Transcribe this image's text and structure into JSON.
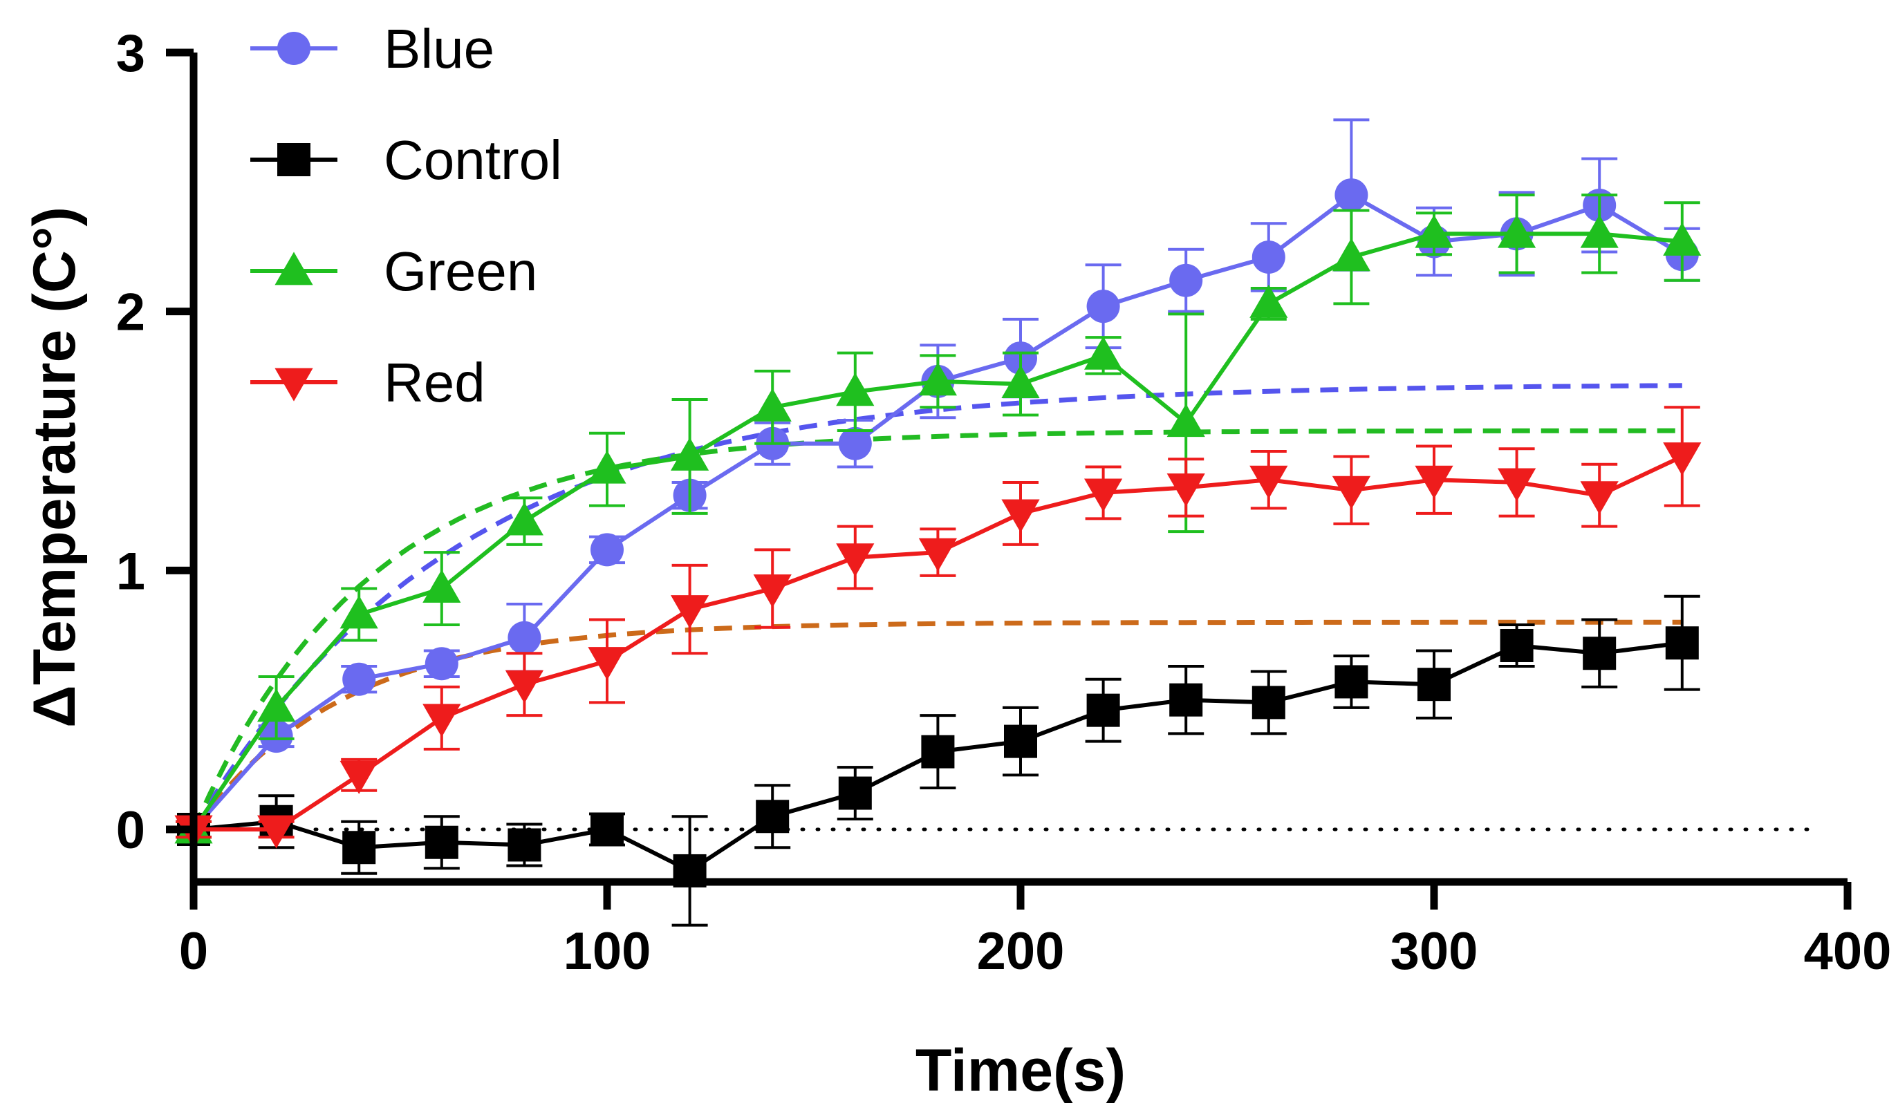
{
  "chart_data": {
    "type": "line",
    "title": "",
    "xlabel": "Time(s)",
    "ylabel": "ΔTemperature (C°)",
    "xlim": [
      0,
      400
    ],
    "ylim": [
      -0.2,
      3
    ],
    "xticks": [
      0,
      100,
      200,
      300,
      400
    ],
    "yticks": [
      0,
      1,
      2,
      3
    ],
    "grid": false,
    "legend_position": "top-left",
    "zero_line": "dotted",
    "series": [
      {
        "name": "Blue",
        "color": "#6a6af0",
        "marker": "circle",
        "x": [
          0,
          20,
          40,
          60,
          80,
          100,
          120,
          140,
          160,
          180,
          200,
          220,
          240,
          260,
          280,
          300,
          320,
          340,
          360
        ],
        "y": [
          0,
          0.36,
          0.58,
          0.64,
          0.74,
          1.08,
          1.29,
          1.49,
          1.49,
          1.73,
          1.82,
          2.02,
          2.12,
          2.21,
          2.45,
          2.27,
          2.3,
          2.41,
          2.22
        ],
        "err": [
          0.03,
          0.04,
          0.05,
          0.05,
          0.13,
          0.05,
          0.05,
          0.08,
          0.09,
          0.14,
          0.15,
          0.16,
          0.12,
          0.13,
          0.29,
          0.13,
          0.16,
          0.18,
          0.1
        ]
      },
      {
        "name": "Control",
        "color": "#000000",
        "marker": "square",
        "x": [
          0,
          20,
          40,
          60,
          80,
          100,
          120,
          140,
          160,
          180,
          200,
          220,
          240,
          260,
          280,
          300,
          320,
          340,
          360
        ],
        "y": [
          0,
          0.03,
          -0.07,
          -0.05,
          -0.06,
          0,
          -0.16,
          0.05,
          0.14,
          0.3,
          0.34,
          0.46,
          0.5,
          0.49,
          0.57,
          0.56,
          0.71,
          0.68,
          0.72
        ],
        "err": [
          0.03,
          0.1,
          0.1,
          0.1,
          0.08,
          0.06,
          0.21,
          0.12,
          0.1,
          0.14,
          0.13,
          0.12,
          0.13,
          0.12,
          0.1,
          0.13,
          0.08,
          0.13,
          0.18
        ]
      },
      {
        "name": "Green",
        "color": "#1fbf1f",
        "marker": "triangle-up",
        "x": [
          0,
          20,
          40,
          60,
          80,
          100,
          120,
          140,
          160,
          180,
          200,
          220,
          240,
          260,
          280,
          300,
          320,
          340,
          360
        ],
        "y": [
          0,
          0.47,
          0.83,
          0.93,
          1.19,
          1.39,
          1.44,
          1.63,
          1.69,
          1.73,
          1.72,
          1.83,
          1.57,
          2.03,
          2.21,
          2.3,
          2.3,
          2.3,
          2.27
        ],
        "err": [
          0.03,
          0.12,
          0.1,
          0.14,
          0.09,
          0.14,
          0.22,
          0.14,
          0.15,
          0.1,
          0.12,
          0.07,
          0.42,
          0.06,
          0.18,
          0.08,
          0.15,
          0.15,
          0.15
        ]
      },
      {
        "name": "Red",
        "color": "#ee1c1c",
        "marker": "triangle-down",
        "x": [
          0,
          20,
          40,
          60,
          80,
          100,
          120,
          140,
          160,
          180,
          200,
          220,
          240,
          260,
          280,
          300,
          320,
          340,
          360
        ],
        "y": [
          0,
          0,
          0.21,
          0.43,
          0.56,
          0.65,
          0.85,
          0.93,
          1.05,
          1.07,
          1.22,
          1.3,
          1.32,
          1.35,
          1.31,
          1.35,
          1.34,
          1.29,
          1.44
        ],
        "err": [
          0.03,
          0.03,
          0.06,
          0.12,
          0.12,
          0.16,
          0.17,
          0.15,
          0.12,
          0.09,
          0.12,
          0.1,
          0.11,
          0.11,
          0.13,
          0.13,
          0.13,
          0.12,
          0.19
        ]
      }
    ],
    "fits": [
      {
        "series": "Blue",
        "color": "#5555ee",
        "plateau": 1.72,
        "k": 0.0158,
        "x_end": 360
      },
      {
        "series": "Green",
        "color": "#22bb22",
        "plateau": 1.54,
        "k": 0.0235,
        "x_end": 360
      },
      {
        "series": "Red",
        "color": "#cc6a1a",
        "plateau": 0.8,
        "k": 0.0275,
        "x_end": 360
      }
    ]
  }
}
